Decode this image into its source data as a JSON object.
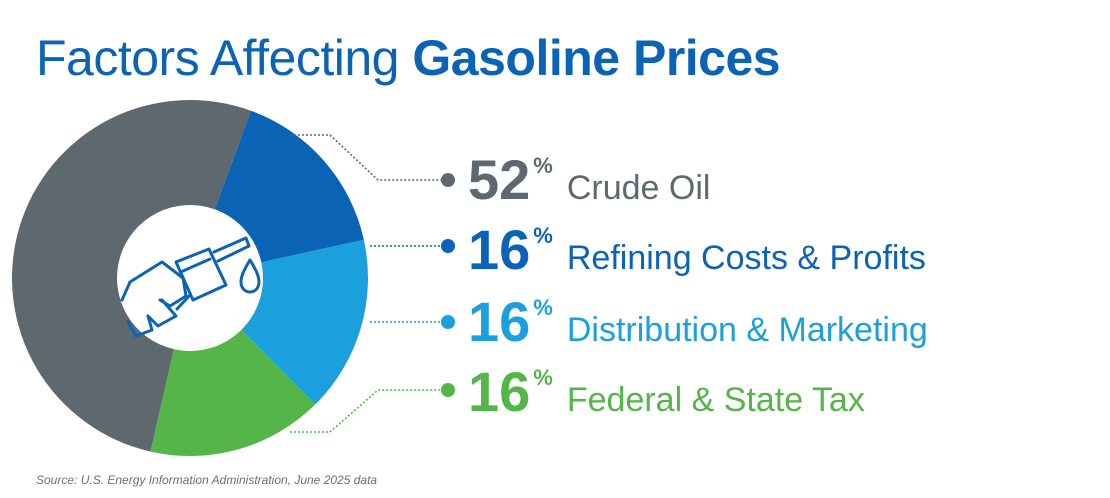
{
  "title": {
    "regular": "Factors Affecting ",
    "bold": "Gasoline Prices"
  },
  "chart_data": {
    "type": "pie",
    "title": "Factors Affecting Gasoline Prices",
    "series": [
      {
        "name": "Crude Oil",
        "value": 52,
        "color": "#5d686f"
      },
      {
        "name": "Refining Costs & Profits",
        "value": 16,
        "color": "#0b63b6"
      },
      {
        "name": "Distribution & Marketing",
        "value": 16,
        "color": "#1ba0dd"
      },
      {
        "name": "Federal & State Tax",
        "value": 16,
        "color": "#54b549"
      }
    ],
    "legend": [
      {
        "value": "52",
        "unit": "%",
        "label": "Crude Oil",
        "color": "#5d686f"
      },
      {
        "value": "16",
        "unit": "%",
        "label": "Refining Costs & Profits",
        "color": "#0b63b6"
      },
      {
        "value": "16",
        "unit": "%",
        "label": "Distribution & Marketing",
        "color": "#1ba0dd"
      },
      {
        "value": "16",
        "unit": "%",
        "label": "Federal & State Tax",
        "color": "#54b549"
      }
    ],
    "center_icon": "fuel-nozzle-icon",
    "legend_placement": "right"
  },
  "source": "Source: U.S. Energy Information Administration, June 2025 data"
}
